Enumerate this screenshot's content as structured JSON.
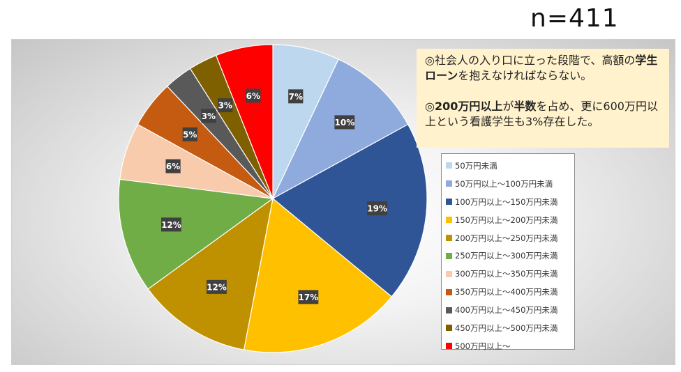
{
  "sample_size": "n=411",
  "note": {
    "line1_pre": "◎社会人の入り口に立った段階で、高額の",
    "line1_bold": "学生ローン",
    "line1_post": "を抱えなければならない。",
    "line2_pre": "◎",
    "line2_bold1": "200万円以上",
    "line2_mid": "が",
    "line2_bold2": "半数",
    "line2_post": "を占め、更に600万円以上という看護学生も3%存在した。"
  },
  "chart_data": {
    "type": "pie",
    "categories": [
      "50万円未満",
      "50万円以上～100万円未満",
      "100万円以上～150万円未満",
      "150万円以上～200万円未満",
      "200万円以上～250万円未満",
      "250万円以上～300万円未満",
      "300万円以上～350万円未満",
      "350万円以上～400万円未満",
      "400万円以上～450万円未満",
      "450万円以上～500万円未満",
      "500万円以上～"
    ],
    "values": [
      7,
      10,
      19,
      17,
      12,
      12,
      6,
      5,
      3,
      3,
      6
    ],
    "data_labels": [
      "7%",
      "10%",
      "19%",
      "17%",
      "12%",
      "12%",
      "6%",
      "5%",
      "3%",
      "3%",
      "6%"
    ],
    "colors": [
      "#bdd7ee",
      "#8faadc",
      "#2f5597",
      "#ffc000",
      "#bf9000",
      "#70ad47",
      "#f8cbad",
      "#c55a11",
      "#595959",
      "#7f6000",
      "#ff0000"
    ],
    "start_angle_deg": 0,
    "direction": "clockwise",
    "legend_position": "right"
  }
}
